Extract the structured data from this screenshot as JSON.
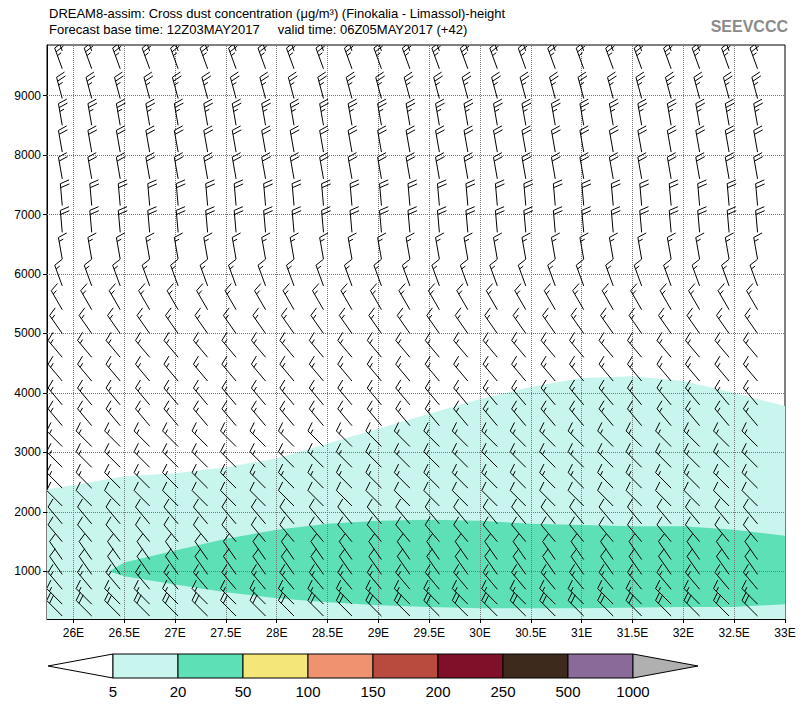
{
  "chart_data": {
    "type": "contour",
    "title": "DREAM8-assim: Cross dust concentration (μg/m³) (Finokalia - Limassol)-height",
    "subtitle": "Forecast base time: 12Z03MAY2017     valid time: 06Z05MAY2017 (+42)",
    "logo": "SEEVCCC",
    "xlim": [
      25.74,
      33
    ],
    "ylim": [
      200,
      9850
    ],
    "xticks": [
      {
        "value": 26,
        "label": "26E"
      },
      {
        "value": 26.5,
        "label": "26.5E"
      },
      {
        "value": 27,
        "label": "27E"
      },
      {
        "value": 27.5,
        "label": "27.5E"
      },
      {
        "value": 28,
        "label": "28E"
      },
      {
        "value": 28.5,
        "label": "28.5E"
      },
      {
        "value": 29,
        "label": "29E"
      },
      {
        "value": 29.5,
        "label": "29.5E"
      },
      {
        "value": 30,
        "label": "30E"
      },
      {
        "value": 30.5,
        "label": "30.5E"
      },
      {
        "value": 31,
        "label": "31E"
      },
      {
        "value": 31.5,
        "label": "31.5E"
      },
      {
        "value": 32,
        "label": "32E"
      },
      {
        "value": 32.5,
        "label": "32.5E"
      },
      {
        "value": 33,
        "label": "33E"
      }
    ],
    "yticks": [
      1000,
      2000,
      3000,
      4000,
      5000,
      6000,
      7000,
      8000,
      9000
    ],
    "grid": true,
    "colorbar": {
      "levels": [
        5,
        20,
        50,
        100,
        150,
        200,
        250,
        500,
        1000
      ],
      "colors": [
        "#ffffff",
        "#c8f5ee",
        "#5de0b6",
        "#f5e679",
        "#ee9270",
        "#b94a3e",
        "#80102a",
        "#3e2a1c",
        "#8a6a98",
        "#b0b0b0"
      ]
    },
    "contours": [
      {
        "level": 5,
        "polygon": [
          [
            25.74,
            200
          ],
          [
            25.74,
            2380
          ],
          [
            26,
            2450
          ],
          [
            26.5,
            2600
          ],
          [
            27,
            2650
          ],
          [
            27.5,
            2750
          ],
          [
            28,
            2900
          ],
          [
            28.5,
            3150
          ],
          [
            29,
            3400
          ],
          [
            29.5,
            3650
          ],
          [
            30,
            3900
          ],
          [
            30.5,
            4100
          ],
          [
            31,
            4250
          ],
          [
            31.5,
            4280
          ],
          [
            32,
            4200
          ],
          [
            32.5,
            4000
          ],
          [
            33,
            3780
          ],
          [
            33,
            200
          ]
        ]
      },
      {
        "level": 20,
        "polygon": [
          [
            26.35,
            1000
          ],
          [
            26.5,
            1150
          ],
          [
            27,
            1350
          ],
          [
            27.5,
            1550
          ],
          [
            28,
            1700
          ],
          [
            28.5,
            1800
          ],
          [
            29,
            1850
          ],
          [
            29.5,
            1870
          ],
          [
            30,
            1850
          ],
          [
            30.5,
            1800
          ],
          [
            31,
            1780
          ],
          [
            31.5,
            1760
          ],
          [
            32,
            1760
          ],
          [
            32.5,
            1700
          ],
          [
            33,
            1600
          ],
          [
            33,
            450
          ],
          [
            32.5,
            400
          ],
          [
            32,
            400
          ],
          [
            31,
            380
          ],
          [
            30,
            380
          ],
          [
            29.5,
            400
          ],
          [
            29,
            430
          ],
          [
            28.5,
            480
          ],
          [
            28,
            550
          ],
          [
            27.5,
            650
          ],
          [
            27,
            780
          ],
          [
            26.5,
            920
          ]
        ]
      }
    ],
    "wind": {
      "x": [
        25.89,
        26.18,
        26.46,
        26.75,
        27.03,
        27.32,
        27.6,
        27.89,
        28.17,
        28.46,
        28.74,
        29.03,
        29.31,
        29.6,
        29.88,
        30.17,
        30.45,
        30.74,
        31.02,
        31.31,
        31.59,
        31.88,
        32.16,
        32.45,
        32.73
      ],
      "heights": [
        250,
        450,
        700,
        950,
        1200,
        1500,
        1800,
        2100,
        2400,
        2750,
        3100,
        3450,
        3800,
        4200,
        4600,
        5000,
        5400,
        5800,
        6250,
        6700,
        7150,
        7600,
        8050,
        8500,
        8950,
        9450,
        9750
      ],
      "direction": [
        315,
        315,
        320,
        325,
        325,
        320,
        320,
        315,
        315,
        315,
        315,
        320,
        320,
        320,
        320,
        325,
        330,
        340,
        350,
        355,
        355,
        350,
        350,
        350,
        345,
        340,
        340
      ],
      "speed": [
        20,
        15,
        15,
        10,
        10,
        10,
        10,
        10,
        15,
        15,
        15,
        15,
        15,
        15,
        15,
        15,
        15,
        15,
        15,
        20,
        20,
        20,
        20,
        25,
        25,
        25,
        25
      ]
    }
  }
}
